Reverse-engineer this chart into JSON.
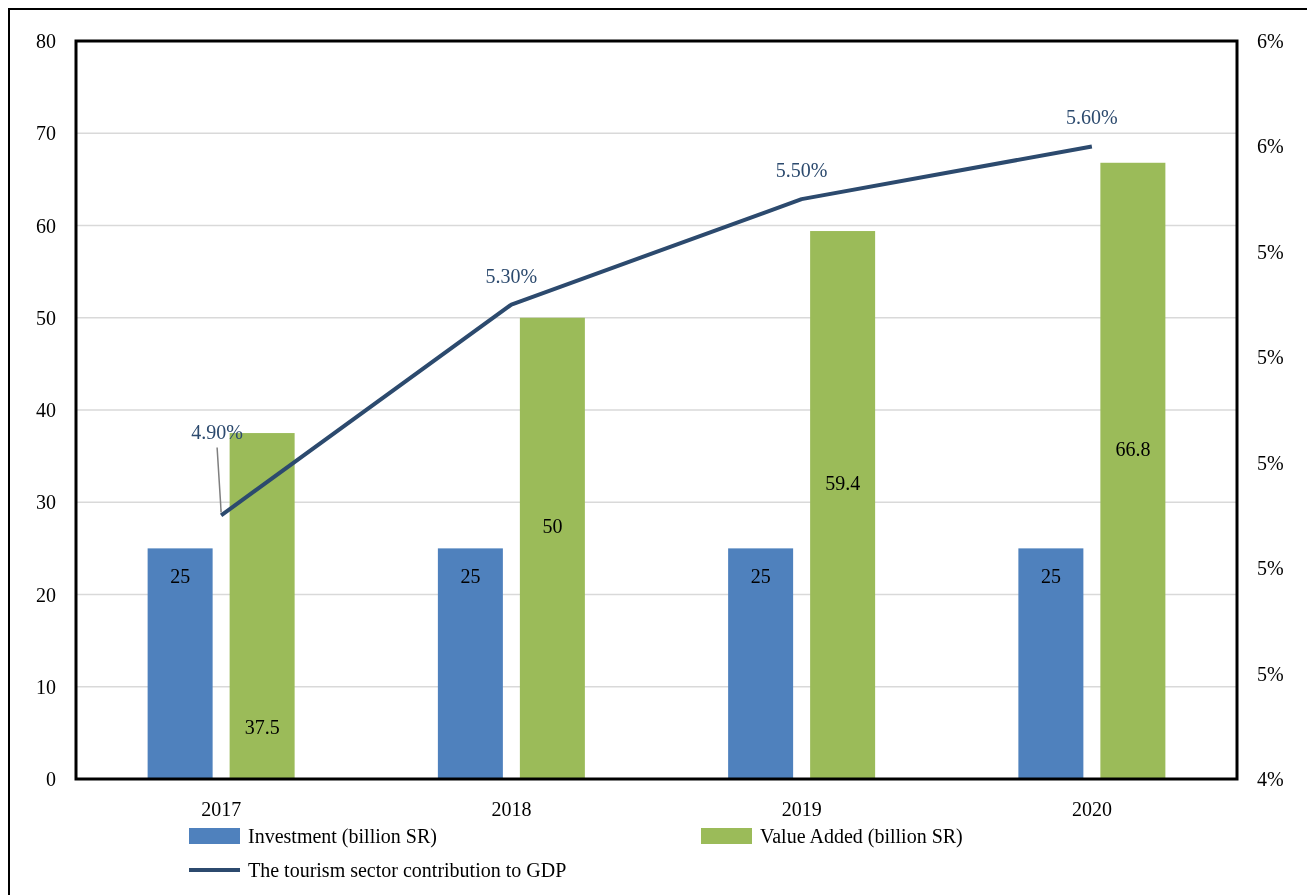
{
  "chart_data": {
    "type": "bar",
    "categories": [
      "2017",
      "2018",
      "2019",
      "2020"
    ],
    "series": [
      {
        "name": "Investment (billion SR)",
        "color": "#4f81bd",
        "values": [
          25,
          25,
          25,
          25
        ],
        "value_labels": [
          "25",
          "25",
          "25",
          "25"
        ]
      },
      {
        "name": "Value Added  (billion SR)",
        "color": "#9bbb59",
        "values": [
          37.5,
          50,
          59.4,
          66.8
        ],
        "value_labels": [
          "37.5",
          "50",
          "59.4",
          "66.8"
        ]
      },
      {
        "name": "The tourism sector contribution to  GDP",
        "type": "line",
        "axis": "y2",
        "color": "#2c4a6e",
        "values": [
          4.9,
          5.3,
          5.5,
          5.6
        ],
        "value_labels": [
          "4.90%",
          "5.30%",
          "5.50%",
          "5.60%"
        ]
      }
    ],
    "ylim": [
      0,
      80
    ],
    "yticks": [
      0,
      10,
      20,
      30,
      40,
      50,
      60,
      70,
      80
    ],
    "y2lim": [
      4.4,
      5.8
    ],
    "y2ticks": [
      {
        "value": 4.4,
        "label": "4%"
      },
      {
        "value": 4.6,
        "label": "5%"
      },
      {
        "value": 4.8,
        "label": "5%"
      },
      {
        "value": 5.0,
        "label": "5%"
      },
      {
        "value": 5.2,
        "label": "5%"
      },
      {
        "value": 5.4,
        "label": "5%"
      },
      {
        "value": 5.6,
        "label": "6%"
      },
      {
        "value": 5.8,
        "label": "6%"
      }
    ],
    "grid": "y",
    "legend": "bottom",
    "marker": "none",
    "line_style": "solid"
  }
}
